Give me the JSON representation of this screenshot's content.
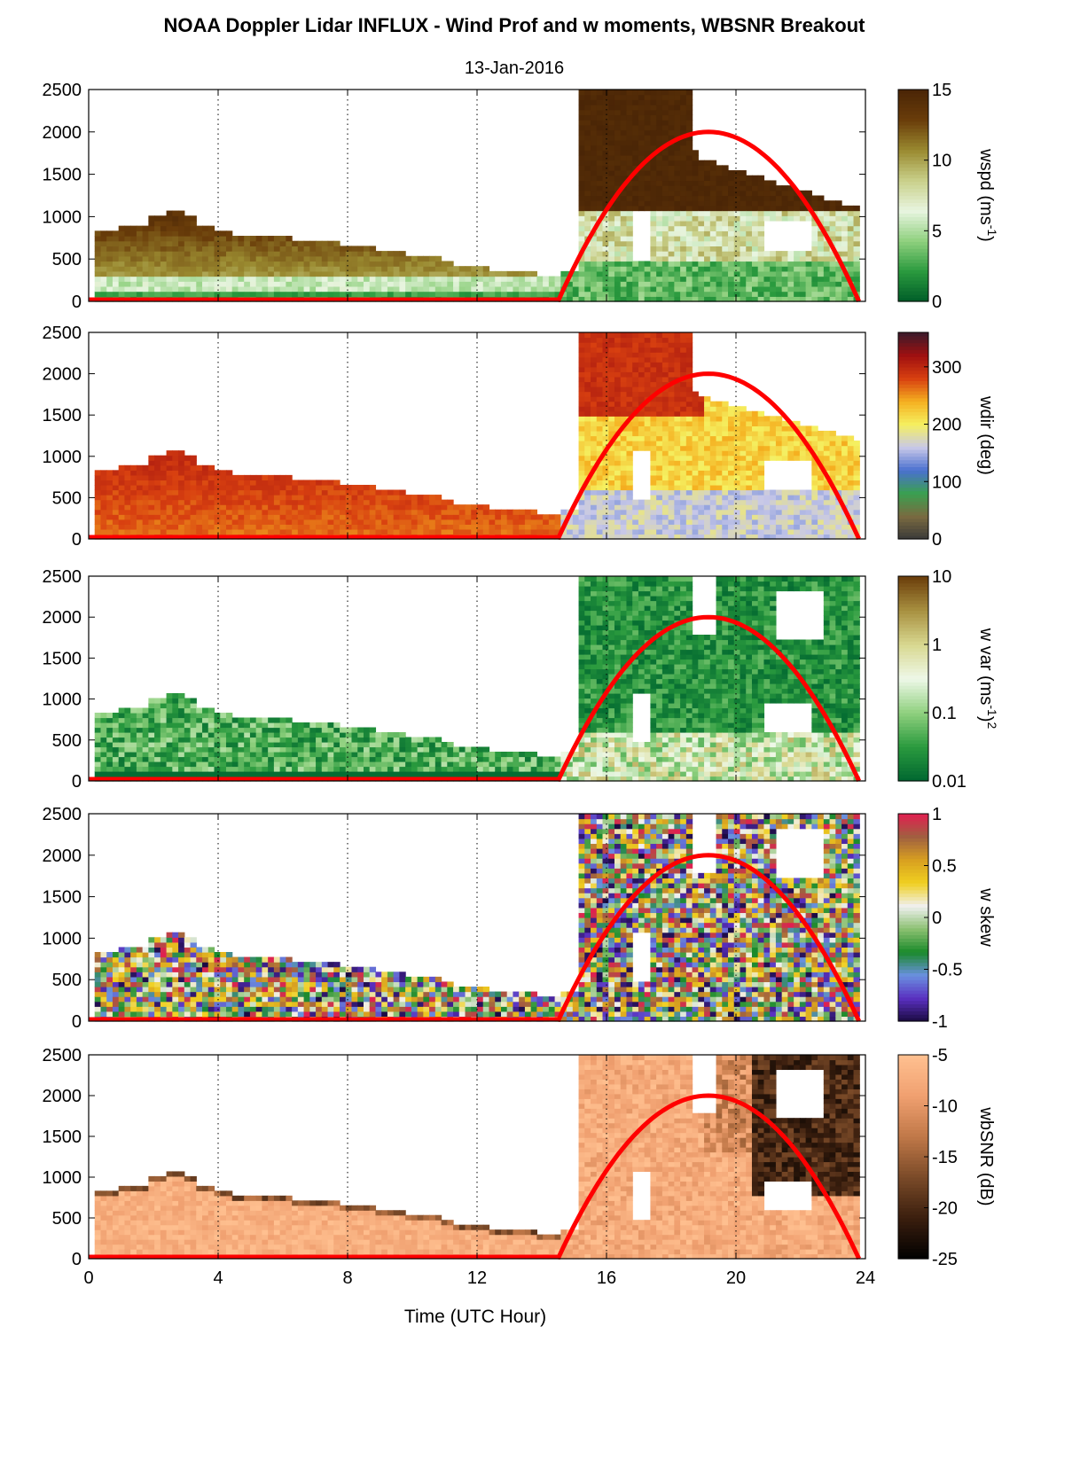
{
  "figure": {
    "title": "NOAA Doppler Lidar INFLUX - Wind Prof and w moments, WBSNR Breakout",
    "date": "13-Jan-2016",
    "xlabel": "Time (UTC Hour)"
  },
  "chart_data": [
    {
      "type": "heatmap",
      "panel": "wspd",
      "xlim": [
        0,
        24
      ],
      "ylim": [
        0,
        2500
      ],
      "xticks": [
        "0",
        "4",
        "8",
        "12",
        "16",
        "20",
        "24"
      ],
      "yticks": [
        "0",
        "500",
        "1000",
        "1500",
        "2000",
        "2500"
      ],
      "xgrid": "dotted vertical lines every 4 h",
      "colorbar": {
        "label": "wspd (ms",
        "label_sup": "-1",
        "label_end": ")",
        "ticks": [
          "0",
          "5",
          "10",
          "15"
        ],
        "range": [
          0,
          15
        ],
        "colors": [
          "#005c28",
          "#2a9a3e",
          "#8fd07e",
          "#e8f5e0",
          "#c9d08a",
          "#9a8a30",
          "#6a3d0a",
          "#4a2506"
        ]
      },
      "regions": [
        {
          "t0": 0.2,
          "t1": 14.5,
          "heights": [
            820,
            830,
            900,
            900,
            1020,
            1080,
            1000,
            900,
            830,
            780,
            760,
            770,
            760,
            720,
            720,
            700,
            680,
            640,
            620,
            580,
            560,
            540,
            480,
            440,
            400,
            380,
            360,
            340,
            320,
            310
          ],
          "profile": "early"
        },
        {
          "t0": 14.5,
          "t1": 24,
          "top": 330,
          "profile": "low"
        },
        {
          "t0": 15.2,
          "t1": 23.8,
          "top": 2500,
          "profile": "upper"
        }
      ],
      "sun_elevation_curve": {
        "t_start": 14.5,
        "t_end": 23.8,
        "peak_t": 19.2,
        "peak_value": 2000
      }
    },
    {
      "type": "heatmap",
      "panel": "wdir",
      "xlim": [
        0,
        24
      ],
      "ylim": [
        0,
        2500
      ],
      "xticks": [
        "0",
        "4",
        "8",
        "12",
        "16",
        "20",
        "24"
      ],
      "yticks": [
        "0",
        "500",
        "1000",
        "1500",
        "2000",
        "2500"
      ],
      "colorbar": {
        "label": "wdir (deg)",
        "ticks": [
          "0",
          "100",
          "200",
          "300"
        ],
        "range": [
          0,
          360
        ],
        "colors": [
          "#3a3a3a",
          "#7a6a40",
          "#3aa050",
          "#4a70d0",
          "#c8c8e8",
          "#f5f060",
          "#f5b020",
          "#d84010",
          "#a01010",
          "#3a1a2a"
        ]
      },
      "sun_elevation_curve": {
        "t_start": 14.5,
        "t_end": 23.8,
        "peak_t": 19.2,
        "peak_value": 2000
      }
    },
    {
      "type": "heatmap",
      "panel": "w var",
      "xlim": [
        0,
        24
      ],
      "ylim": [
        0,
        2500
      ],
      "xticks": [
        "0",
        "4",
        "8",
        "12",
        "16",
        "20",
        "24"
      ],
      "yticks": [
        "0",
        "500",
        "1000",
        "1500",
        "2000",
        "2500"
      ],
      "colorbar": {
        "label": "w var (ms",
        "label_sup": "-1",
        "label_end": ")",
        "label_sup2": "2",
        "ticks": [
          "0.01",
          "0.1",
          "1",
          "10"
        ],
        "scale": "log",
        "range": [
          0.01,
          10
        ],
        "colors": [
          "#006630",
          "#2a9a3e",
          "#8fd07e",
          "#eef8e8",
          "#d8d890",
          "#a89040",
          "#6a3d0a"
        ]
      },
      "sun_elevation_curve": {
        "t_start": 14.5,
        "t_end": 23.8,
        "peak_t": 19.2,
        "peak_value": 2000
      }
    },
    {
      "type": "heatmap",
      "panel": "w skew",
      "xlim": [
        0,
        24
      ],
      "ylim": [
        0,
        2500
      ],
      "xticks": [
        "0",
        "4",
        "8",
        "12",
        "16",
        "20",
        "24"
      ],
      "yticks": [
        "0",
        "500",
        "1000",
        "1500",
        "2000",
        "2500"
      ],
      "colorbar": {
        "label": "w skew",
        "ticks": [
          "-1",
          "-0.5",
          "0",
          "0.5",
          "1"
        ],
        "range": [
          -1,
          1
        ],
        "colors": [
          "#1a0a40",
          "#5a30c0",
          "#6a90e0",
          "#1a8a2a",
          "#8ac070",
          "#f0f0f0",
          "#f0d020",
          "#d8a020",
          "#a06040",
          "#e02050"
        ]
      },
      "sun_elevation_curve": {
        "t_start": 14.5,
        "t_end": 23.8,
        "peak_t": 19.2,
        "peak_value": 2000
      }
    },
    {
      "type": "heatmap",
      "panel": "wbSNR",
      "xlim": [
        0,
        24
      ],
      "ylim": [
        0,
        2500
      ],
      "xticks": [
        "0",
        "4",
        "8",
        "12",
        "16",
        "20",
        "24"
      ],
      "xticklabels_shown": true,
      "yticks": [
        "0",
        "500",
        "1000",
        "1500",
        "2000",
        "2500"
      ],
      "colorbar": {
        "label": "wbSNR (dB)",
        "ticks": [
          "-25",
          "-20",
          "-15",
          "-10",
          "-5"
        ],
        "range": [
          -25,
          -5
        ],
        "colors": [
          "#000000",
          "#3a1e0e",
          "#7a4a28",
          "#c07848",
          "#f0a070",
          "#ffc090"
        ]
      },
      "sun_elevation_curve": {
        "t_start": 14.5,
        "t_end": 23.8,
        "peak_t": 19.2,
        "peak_value": 2000
      }
    }
  ]
}
